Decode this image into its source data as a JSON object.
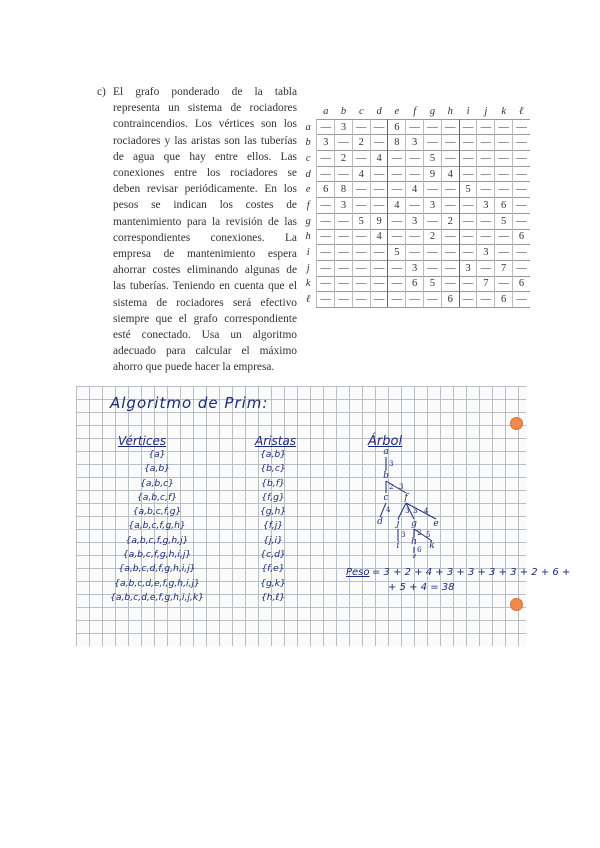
{
  "problem": {
    "label": "c)",
    "text": "El grafo ponderado de la tabla representa un sistema de rociadores contraincendios. Los vértices son los rociadores y las aristas son las tuberías de agua que hay entre ellos. Las conexiones entre los rociadores se deben revisar periódicamente. En los pesos se indican los costes de mantenimiento para la revisión de las correspondientes conexiones. La empresa de mantenimiento espera ahorrar costes eliminando algunas de las tuberías. Teniendo en cuenta que el sistema de rociadores será efectivo siempre que el grafo correspondiente esté conectado. Usa un algoritmo adecuado para calcular el máximo ahorro que puede hacer la empresa."
  },
  "matrix": {
    "headers": [
      "a",
      "b",
      "c",
      "d",
      "e",
      "f",
      "g",
      "h",
      "i",
      "j",
      "k",
      "ℓ"
    ],
    "rows": [
      {
        "label": "a",
        "cells": [
          "—",
          "3",
          "—",
          "—",
          "6",
          "—",
          "—",
          "—",
          "—",
          "—",
          "—",
          "—"
        ]
      },
      {
        "label": "b",
        "cells": [
          "3",
          "—",
          "2",
          "—",
          "8",
          "3",
          "—",
          "—",
          "—",
          "—",
          "—",
          "—"
        ]
      },
      {
        "label": "c",
        "cells": [
          "—",
          "2",
          "—",
          "4",
          "—",
          "—",
          "5",
          "—",
          "—",
          "—",
          "—",
          "—"
        ]
      },
      {
        "label": "d",
        "cells": [
          "—",
          "—",
          "4",
          "—",
          "—",
          "—",
          "9",
          "4",
          "—",
          "—",
          "—",
          "—"
        ]
      },
      {
        "label": "e",
        "cells": [
          "6",
          "8",
          "—",
          "—",
          "—",
          "4",
          "—",
          "—",
          "5",
          "—",
          "—",
          "—"
        ]
      },
      {
        "label": "f",
        "cells": [
          "—",
          "3",
          "—",
          "—",
          "4",
          "—",
          "3",
          "—",
          "—",
          "3",
          "6",
          "—"
        ]
      },
      {
        "label": "g",
        "cells": [
          "—",
          "—",
          "5",
          "9",
          "—",
          "3",
          "—",
          "2",
          "—",
          "—",
          "5",
          "—"
        ]
      },
      {
        "label": "h",
        "cells": [
          "—",
          "—",
          "—",
          "4",
          "—",
          "—",
          "2",
          "—",
          "—",
          "—",
          "—",
          "6"
        ]
      },
      {
        "label": "i",
        "cells": [
          "—",
          "—",
          "—",
          "—",
          "5",
          "—",
          "—",
          "—",
          "—",
          "3",
          "—",
          "—"
        ]
      },
      {
        "label": "j",
        "cells": [
          "—",
          "—",
          "—",
          "—",
          "—",
          "3",
          "—",
          "—",
          "3",
          "—",
          "7",
          "—"
        ]
      },
      {
        "label": "k",
        "cells": [
          "—",
          "—",
          "—",
          "—",
          "—",
          "6",
          "5",
          "—",
          "—",
          "7",
          "—",
          "6"
        ]
      },
      {
        "label": "ℓ",
        "cells": [
          "—",
          "—",
          "—",
          "—",
          "—",
          "—",
          "—",
          "6",
          "—",
          "—",
          "6",
          "—"
        ]
      }
    ]
  },
  "notes": {
    "title": "Algoritmo de Prim:",
    "vertices_header": "Vértices",
    "aristas_header": "Aristas",
    "arbol_header": "Árbol",
    "vertices": [
      "{a}",
      "{a,b}",
      "{a,b,c}",
      "{a,b,c,f}",
      "{a,b,c,f,g}",
      "{a,b,c,f,g,h}",
      "{a,b,c,f,g,h,j}",
      "{a,b,c,f,g,h,i,j}",
      "{a,b,c,d,f,g,h,i,j}",
      "{a,b,c,d,e,f,g,h,i,j}",
      "{a,b,c,d,e,f,g,h,i,j,k}"
    ],
    "aristas": [
      "{a,b}",
      "{b,c}",
      "{b,f}",
      "{f,g}",
      "{g,h}",
      "{f,j}",
      "{j,i}",
      "{c,d}",
      "{f,e}",
      "{g,k}",
      "{h,ℓ}"
    ],
    "tree": {
      "nodes": [
        "a",
        "b",
        "c",
        "d",
        "f",
        "j",
        "g",
        "e",
        "i",
        "h",
        "k",
        "ℓ"
      ],
      "edges": [
        [
          "a",
          "b",
          "3"
        ],
        [
          "b",
          "c",
          "2"
        ],
        [
          "b",
          "f",
          "3"
        ],
        [
          "c",
          "d",
          "4"
        ],
        [
          "f",
          "j",
          "3"
        ],
        [
          "f",
          "g",
          "3"
        ],
        [
          "f",
          "e",
          "4"
        ],
        [
          "j",
          "i",
          "3"
        ],
        [
          "g",
          "h",
          "2"
        ],
        [
          "g",
          "k",
          "5"
        ],
        [
          "h",
          "ℓ",
          "6"
        ]
      ]
    },
    "peso_label": "Peso",
    "peso_line1": "= 3 + 2 + 4 + 3 + 3 + 3 + 3 + 2 + 6 +",
    "peso_line2": "+ 5 + 4 = 38"
  },
  "colors": {
    "ink": "#1b2a7a",
    "punch_hole": "#f08a4b",
    "grid": "#b9bfc8"
  }
}
